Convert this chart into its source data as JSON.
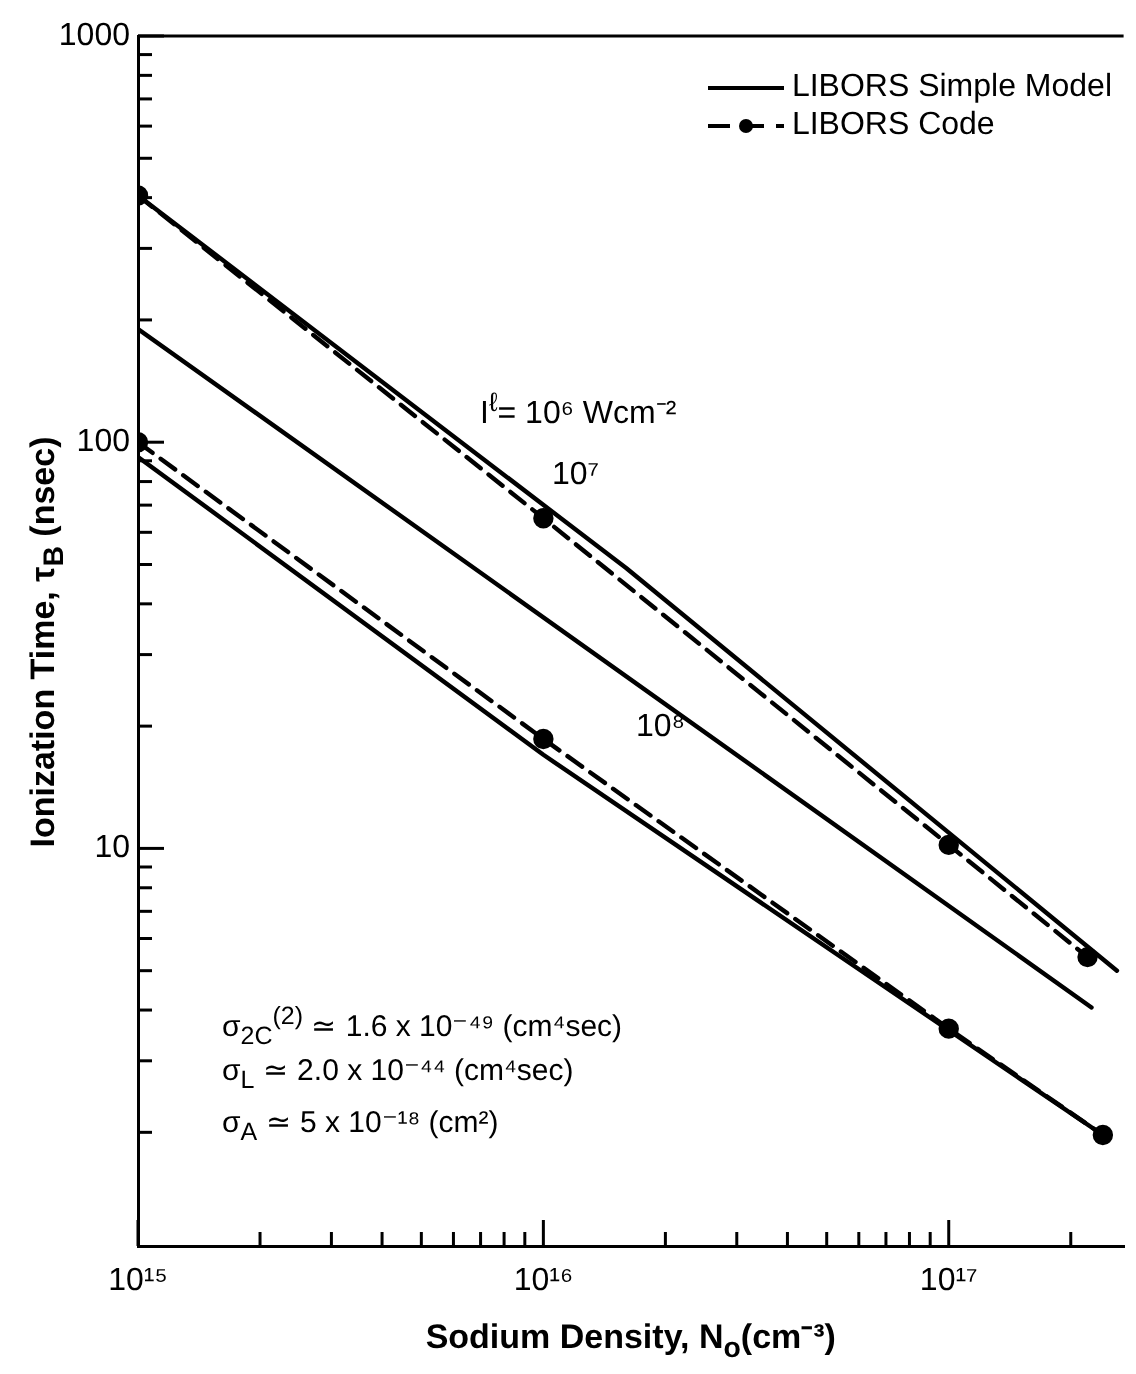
{
  "chart_data": {
    "type": "line",
    "xlabel": "Sodium Density, N$_{o}$(cm⁻³)",
    "ylabel": "Ionization Time, τ$_{B}$ (nsec)",
    "log": "xy",
    "grid": false,
    "legend": "top right",
    "xlim": [
      1000000000000000.0,
      2.7e+17
    ],
    "ylim": [
      1.05,
      1000
    ],
    "xticks": [
      {
        "value": 1000000000000000.0,
        "label": "10¹⁵"
      },
      {
        "value": 2000000000000000.0,
        "label": null
      },
      {
        "value": 3000000000000000.0,
        "label": null
      },
      {
        "value": 4000000000000000.0,
        "label": null
      },
      {
        "value": 5000000000000000.0,
        "label": null
      },
      {
        "value": 6000000000000000.0,
        "label": null
      },
      {
        "value": 7000000000000000.0,
        "label": null
      },
      {
        "value": 8000000000000000.0,
        "label": null
      },
      {
        "value": 9000000000000000.0,
        "label": null
      },
      {
        "value": 1e+16,
        "label": "10¹⁶"
      },
      {
        "value": 2e+16,
        "label": null
      },
      {
        "value": 3e+16,
        "label": null
      },
      {
        "value": 4e+16,
        "label": null
      },
      {
        "value": 5e+16,
        "label": null
      },
      {
        "value": 6e+16,
        "label": null
      },
      {
        "value": 7e+16,
        "label": null
      },
      {
        "value": 8e+16,
        "label": null
      },
      {
        "value": 9e+16,
        "label": null
      },
      {
        "value": 1e+17,
        "label": "10¹⁷"
      },
      {
        "value": 2e+17,
        "label": null
      }
    ],
    "yticks": [
      {
        "value": 2,
        "label": null
      },
      {
        "value": 3,
        "label": null
      },
      {
        "value": 4,
        "label": null
      },
      {
        "value": 5,
        "label": null
      },
      {
        "value": 6,
        "label": null
      },
      {
        "value": 7,
        "label": null
      },
      {
        "value": 8,
        "label": null
      },
      {
        "value": 9,
        "label": null
      },
      10,
      {
        "value": 20,
        "label": null
      },
      {
        "value": 30,
        "label": null
      },
      {
        "value": 40,
        "label": null
      },
      {
        "value": 50,
        "label": null
      },
      {
        "value": 60,
        "label": null
      },
      {
        "value": 70,
        "label": null
      },
      {
        "value": 80,
        "label": null
      },
      {
        "value": 90,
        "label": null
      },
      100,
      {
        "value": 200,
        "label": null
      },
      {
        "value": 300,
        "label": null
      },
      {
        "value": 400,
        "label": null
      },
      {
        "value": 500,
        "label": null
      },
      {
        "value": 600,
        "label": null
      },
      {
        "value": 700,
        "label": null
      },
      {
        "value": 800,
        "label": null
      },
      {
        "value": 900,
        "label": null
      },
      1000
    ],
    "series": [
      {
        "name": "LIBORS Simple Model",
        "color": "#000000",
        "line_style": "solid",
        "marker": "none",
        "x": [
          1000000000000000.0,
          1.6e+16,
          2.6e+17
        ],
        "values": [
          405,
          49,
          5.0
        ]
      },
      {
        "name": "LIBORS Code",
        "color": "#000000",
        "line_style": "dashed",
        "marker": "circle",
        "x": [
          1000000000000000.0,
          1e+16,
          1e+17,
          2.2e+17
        ],
        "values": [
          405,
          65,
          10.2,
          5.4
        ]
      },
      {
        "color": "#000000",
        "line_style": "solid",
        "marker": "none",
        "x": [
          1000000000000000.0,
          2.25e+17
        ],
        "values": [
          190,
          4.06
        ]
      },
      {
        "color": "#000000",
        "line_style": "solid",
        "marker": "none",
        "x": [
          1000000000000000.0,
          1e+16,
          2.4e+17
        ],
        "values": [
          92,
          17,
          1.97
        ]
      },
      {
        "color": "#000000",
        "line_style": "dashed",
        "marker": "circle",
        "x": [
          1000000000000000.0,
          1e+16,
          1e+17,
          2.4e+17
        ],
        "values": [
          100,
          18.6,
          3.6,
          1.97
        ]
      }
    ],
    "annotations": [
      "I$^{ℓ}$= 10⁶  Wcm⁻²",
      "10⁷",
      "10⁸",
      "σ$_{2C}$$^{(2)}$ ≃ 1.6 x 10⁻⁴⁹ (cm⁴sec)",
      "σ$_{L}$ ≃ 2.0 x 10⁻⁴⁴ (cm⁴sec)",
      "σ$_{A}$ ≃ 5 x 10⁻¹⁸ (cm²)"
    ]
  }
}
